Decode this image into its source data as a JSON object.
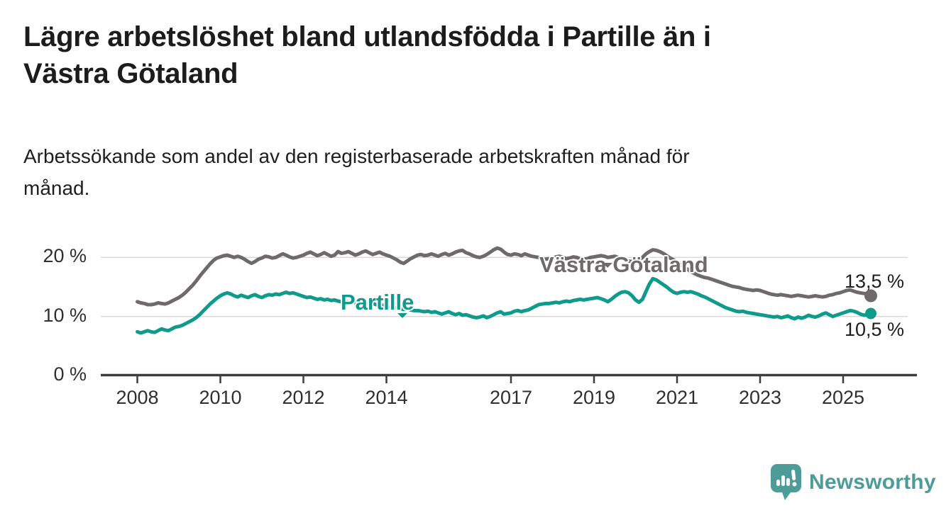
{
  "header": {
    "title_lines": [
      "Lägre arbetslöshet bland utlandsfödda i Partille än i",
      "Västra Götaland"
    ],
    "subtitle_lines": [
      "Arbetssökande som andel av den registerbaserade arbetskraften månad för",
      "månad."
    ]
  },
  "branding": {
    "logo_text": "Newsworthy",
    "logo_icon": "bar-chart-speech-bubble-icon",
    "logo_color": "#4d9c97"
  },
  "chart_data": {
    "type": "line",
    "unit": "%",
    "frequency": "monthly",
    "x_start": "2008-01",
    "x_end": "2025-09",
    "grid": "horizontal",
    "legend_position": "inline-labels",
    "x_ticks": [
      "2008",
      "2010",
      "2012",
      "2014",
      "2017",
      "2019",
      "2021",
      "2023",
      "2025"
    ],
    "y_ticks": [
      {
        "value": 20,
        "label": "20 %"
      },
      {
        "value": 10,
        "label": "10 %"
      },
      {
        "value": 0,
        "label": "0 %"
      }
    ],
    "ylim": [
      0,
      23
    ],
    "colors": {
      "vastra_gotaland": "#6e6a6a",
      "partille": "#0f9b8c",
      "gridline": "#d9d9d9",
      "axis": "#3d3d3d"
    },
    "series": [
      {
        "name": "Västra Götaland",
        "color": "#6e6a6a",
        "end_value": 13.5,
        "end_label": "13,5 %",
        "values": [
          12.5,
          12.3,
          12.2,
          12.0,
          12.0,
          12.1,
          12.3,
          12.2,
          12.1,
          12.3,
          12.6,
          12.9,
          13.2,
          13.6,
          14.1,
          14.7,
          15.3,
          16.0,
          16.8,
          17.5,
          18.2,
          18.9,
          19.5,
          19.9,
          20.1,
          20.3,
          20.4,
          20.2,
          20.0,
          20.2,
          20.0,
          19.7,
          19.3,
          19.0,
          19.3,
          19.7,
          19.9,
          20.2,
          20.1,
          19.9,
          20.0,
          20.3,
          20.6,
          20.4,
          20.1,
          19.9,
          20.0,
          20.2,
          20.4,
          20.7,
          20.9,
          20.6,
          20.3,
          20.5,
          20.8,
          20.5,
          20.2,
          20.4,
          21.0,
          20.7,
          20.8,
          21.0,
          20.7,
          20.4,
          20.6,
          20.9,
          21.1,
          20.8,
          20.5,
          20.7,
          20.9,
          20.6,
          20.4,
          20.2,
          19.9,
          19.6,
          19.2,
          19.0,
          19.4,
          19.8,
          20.1,
          20.4,
          20.5,
          20.3,
          20.4,
          20.6,
          20.4,
          20.2,
          20.5,
          20.7,
          20.4,
          20.6,
          20.9,
          21.1,
          21.2,
          20.8,
          20.6,
          20.3,
          20.1,
          20.0,
          20.2,
          20.5,
          20.9,
          21.3,
          21.6,
          21.4,
          20.9,
          20.5,
          20.4,
          20.6,
          20.5,
          20.3,
          20.6,
          20.4,
          20.2,
          20.1,
          20.0,
          19.8,
          19.7,
          19.8,
          19.9,
          20.1,
          20.2,
          20.0,
          19.8,
          19.9,
          20.1,
          20.0,
          19.8,
          19.7,
          19.8,
          20.0,
          20.1,
          20.2,
          20.3,
          20.2,
          20.0,
          20.1,
          20.2,
          20.0,
          19.8,
          19.6,
          19.4,
          19.3,
          19.4,
          19.6,
          20.0,
          20.6,
          21.0,
          21.3,
          21.2,
          21.0,
          20.7,
          20.3,
          19.9,
          19.6,
          19.2,
          18.8,
          18.4,
          18.0,
          17.6,
          17.3,
          17.0,
          16.8,
          16.6,
          16.5,
          16.3,
          16.1,
          15.9,
          15.7,
          15.5,
          15.3,
          15.1,
          15.0,
          14.9,
          14.7,
          14.6,
          14.5,
          14.4,
          14.5,
          14.4,
          14.2,
          14.0,
          13.8,
          13.7,
          13.6,
          13.7,
          13.6,
          13.5,
          13.4,
          13.5,
          13.6,
          13.5,
          13.4,
          13.3,
          13.4,
          13.5,
          13.4,
          13.3,
          13.4,
          13.6,
          13.7,
          13.9,
          14.0,
          14.2,
          14.4,
          14.5,
          14.3,
          14.1,
          14.0,
          13.9,
          13.8,
          13.5
        ]
      },
      {
        "name": "Partille",
        "color": "#0f9b8c",
        "end_value": 10.5,
        "end_label": "10,5 %",
        "values": [
          7.4,
          7.2,
          7.4,
          7.6,
          7.4,
          7.3,
          7.6,
          7.9,
          7.7,
          7.6,
          7.9,
          8.2,
          8.3,
          8.5,
          8.8,
          9.1,
          9.4,
          9.8,
          10.3,
          10.9,
          11.5,
          12.1,
          12.6,
          13.1,
          13.5,
          13.8,
          14.0,
          13.8,
          13.5,
          13.3,
          13.6,
          13.4,
          13.2,
          13.5,
          13.7,
          13.4,
          13.2,
          13.5,
          13.7,
          13.6,
          13.8,
          13.7,
          13.9,
          14.1,
          13.9,
          14.0,
          13.8,
          13.6,
          13.4,
          13.2,
          13.3,
          13.1,
          12.9,
          13.0,
          12.8,
          12.9,
          12.7,
          12.8,
          12.6,
          12.5,
          12.6,
          12.4,
          12.5,
          12.3,
          12.4,
          12.2,
          12.3,
          12.1,
          12.2,
          12.0,
          12.0,
          11.9,
          11.8,
          11.6,
          11.5,
          11.4,
          11.3,
          11.2,
          11.3,
          11.1,
          11.0,
          11.0,
          10.9,
          10.8,
          10.9,
          10.7,
          10.8,
          10.6,
          10.4,
          10.6,
          10.8,
          10.5,
          10.3,
          10.5,
          10.2,
          10.3,
          10.1,
          9.9,
          9.8,
          9.9,
          10.1,
          9.8,
          10.0,
          10.3,
          10.6,
          10.8,
          10.4,
          10.5,
          10.6,
          10.9,
          11.0,
          10.8,
          11.0,
          11.1,
          11.4,
          11.7,
          12.0,
          12.1,
          12.2,
          12.2,
          12.3,
          12.4,
          12.3,
          12.5,
          12.6,
          12.5,
          12.7,
          12.8,
          12.9,
          12.8,
          12.9,
          13.0,
          13.1,
          13.2,
          13.0,
          12.8,
          12.5,
          12.9,
          13.4,
          13.8,
          14.1,
          14.2,
          14.0,
          13.5,
          12.8,
          12.4,
          12.9,
          14.2,
          15.5,
          16.4,
          16.2,
          15.8,
          15.4,
          15.0,
          14.5,
          14.1,
          13.9,
          14.1,
          14.2,
          14.1,
          14.2,
          14.0,
          13.8,
          13.5,
          13.3,
          13.0,
          12.7,
          12.4,
          12.1,
          11.8,
          11.5,
          11.3,
          11.1,
          10.9,
          10.8,
          10.9,
          10.7,
          10.6,
          10.5,
          10.4,
          10.3,
          10.2,
          10.1,
          10.0,
          9.9,
          10.0,
          9.8,
          9.9,
          10.1,
          9.8,
          9.6,
          9.9,
          9.7,
          9.9,
          10.2,
          10.0,
          9.9,
          10.1,
          10.4,
          10.6,
          10.3,
          10.0,
          10.2,
          10.4,
          10.6,
          10.8,
          11.0,
          10.9,
          10.7,
          10.4,
          10.2,
          10.3,
          10.5
        ]
      }
    ]
  }
}
